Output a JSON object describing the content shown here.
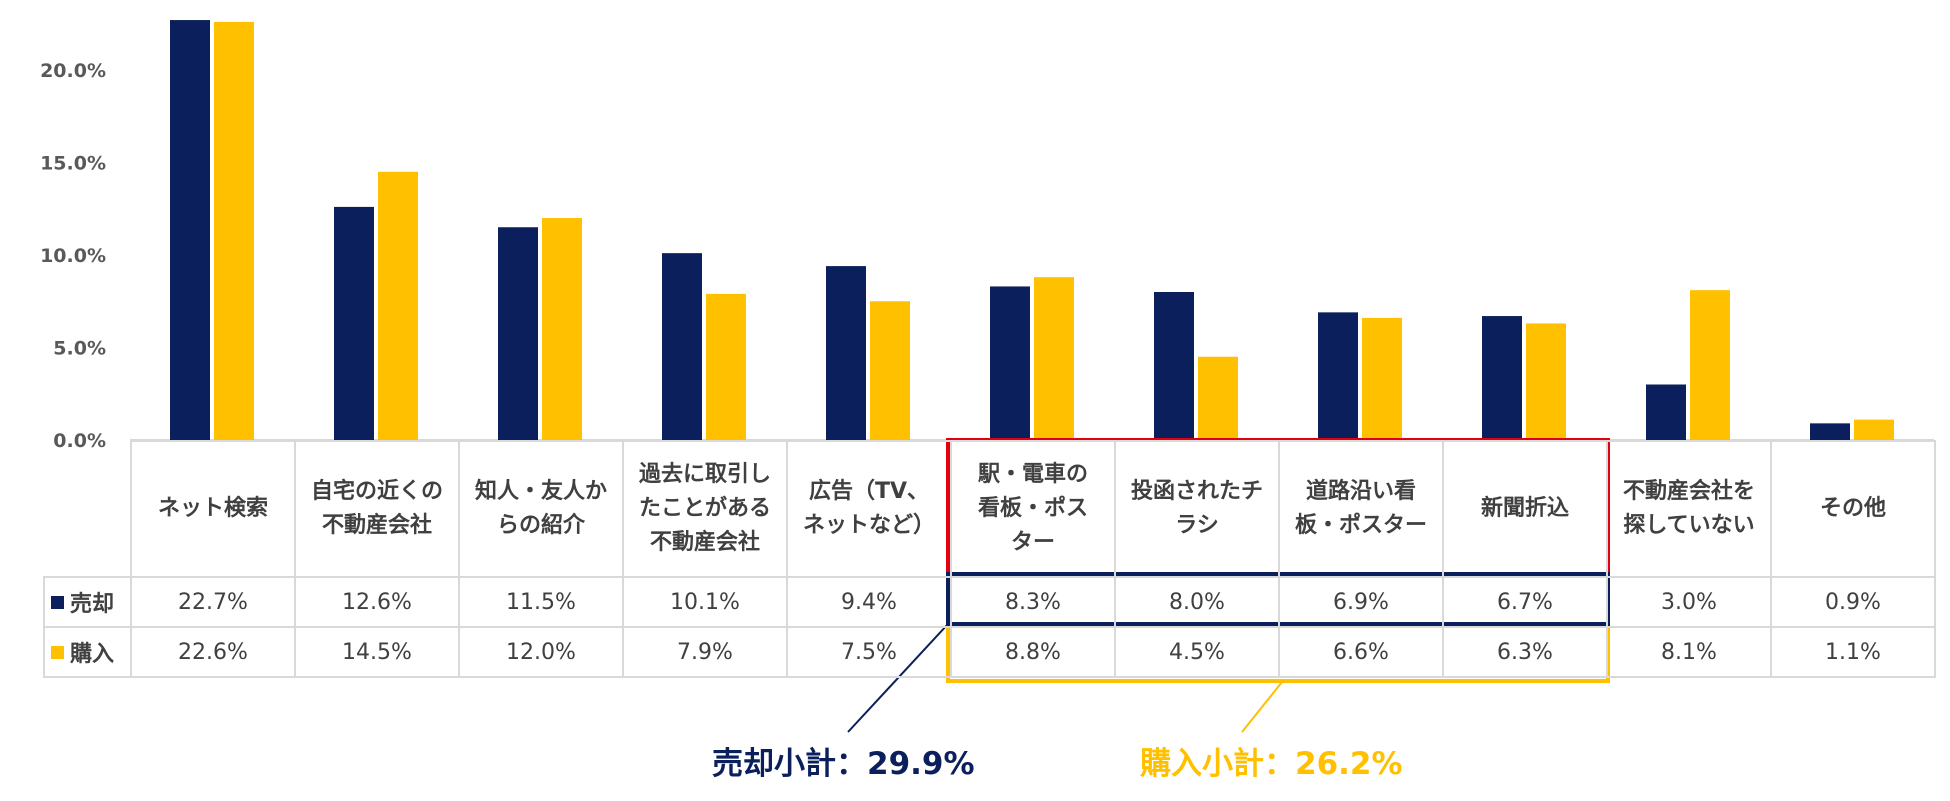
{
  "chart_data": {
    "type": "bar",
    "categories": [
      "ネット検索",
      "自宅の近くの不動産会社",
      "知人・友人からの紹介",
      "過去に取引したことがある不動産会社",
      "広告（TV、ネットなど）",
      "駅・電車の看板・ポスター",
      "投函されたチラシ",
      "道路沿い看板・ポスター",
      "新聞折込",
      "不動産会社を探していない",
      "その他"
    ],
    "category_lines": [
      [
        "ネット検索"
      ],
      [
        "自宅の近くの",
        "不動産会社"
      ],
      [
        "知人・友人か",
        "らの紹介"
      ],
      [
        "過去に取引し",
        "たことがある",
        "不動産会社"
      ],
      [
        "広告（TV、",
        "ネットなど）"
      ],
      [
        "駅・電車の",
        "看板・ポス",
        "ター"
      ],
      [
        "投函されたチ",
        "ラシ"
      ],
      [
        "道路沿い看",
        "板・ポスター"
      ],
      [
        "新聞折込"
      ],
      [
        "不動産会社を",
        "探していない"
      ],
      [
        "その他"
      ]
    ],
    "series": [
      {
        "name": "売却",
        "color": "#0b1f5c",
        "values": [
          22.7,
          12.6,
          11.5,
          10.1,
          9.4,
          8.3,
          8.0,
          6.9,
          6.7,
          3.0,
          0.9
        ],
        "labels": [
          "22.7%",
          "12.6%",
          "11.5%",
          "10.1%",
          "9.4%",
          "8.3%",
          "8.0%",
          "6.9%",
          "6.7%",
          "3.0%",
          "0.9%"
        ]
      },
      {
        "name": "購入",
        "color": "#ffc000",
        "values": [
          22.6,
          14.5,
          12.0,
          7.9,
          7.5,
          8.8,
          4.5,
          6.6,
          6.3,
          8.1,
          1.1
        ],
        "labels": [
          "22.6%",
          "14.5%",
          "12.0%",
          "7.9%",
          "7.5%",
          "8.8%",
          "4.5%",
          "6.6%",
          "6.3%",
          "8.1%",
          "1.1%"
        ]
      }
    ],
    "y_ticks": [
      "0.0%",
      "5.0%",
      "10.0%",
      "15.0%",
      "20.0%"
    ],
    "ylim": [
      0,
      22.5
    ],
    "highlight_categories": [
      5,
      8
    ]
  },
  "callouts": {
    "sell_subtotal": "売却小計：29.9%",
    "buy_subtotal": "購入小計：26.2%"
  },
  "colors": {
    "sell": "#0b1f5c",
    "buy": "#ffc000",
    "highlight_box": "#e00010"
  }
}
